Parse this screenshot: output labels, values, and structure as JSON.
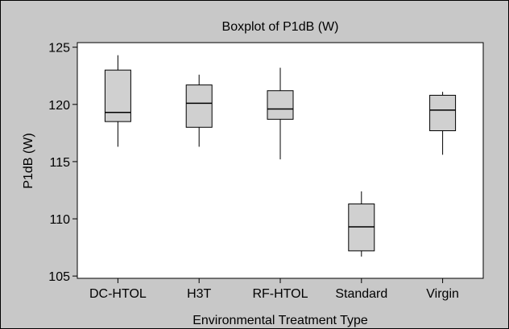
{
  "chart_data": {
    "type": "boxplot",
    "title": "Boxplot of P1dB (W)",
    "xlabel": "Environmental Treatment Type",
    "ylabel": "P1dB (W)",
    "ylim": [
      104.8,
      125.4
    ],
    "yticks": [
      105,
      110,
      115,
      120,
      125
    ],
    "categories": [
      "DC-HTOL",
      "H3T",
      "RF-HTOL",
      "Standard",
      "Virgin"
    ],
    "boxes": [
      {
        "min": 116.3,
        "q1": 118.5,
        "median": 119.3,
        "q3": 123.0,
        "max": 124.3
      },
      {
        "min": 116.3,
        "q1": 118.0,
        "median": 120.1,
        "q3": 121.7,
        "max": 122.6
      },
      {
        "min": 115.2,
        "q1": 118.7,
        "median": 119.6,
        "q3": 121.2,
        "max": 123.2
      },
      {
        "min": 106.7,
        "q1": 107.2,
        "median": 109.3,
        "q3": 111.3,
        "max": 112.4
      },
      {
        "min": 115.6,
        "q1": 117.7,
        "median": 119.5,
        "q3": 120.8,
        "max": 121.1
      }
    ],
    "grid": false,
    "colors": {
      "frame_bg": "#c8c8c8",
      "plot_bg": "#ffffff",
      "box_fill": "#d0d0d0",
      "line": "#000000"
    }
  }
}
